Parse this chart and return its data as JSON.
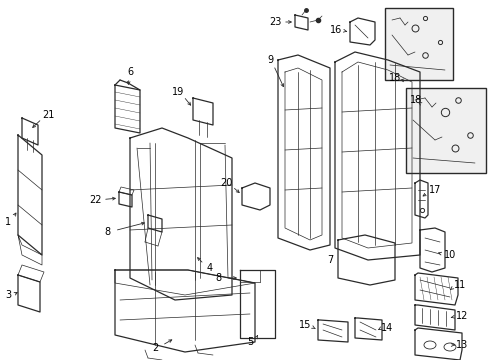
{
  "background_color": "#ffffff",
  "line_color": "#2a2a2a",
  "text_color": "#000000",
  "figsize": [
    4.89,
    3.6
  ],
  "dpi": 100,
  "lw_main": 0.9,
  "lw_detail": 0.5,
  "fontsize": 7.0
}
